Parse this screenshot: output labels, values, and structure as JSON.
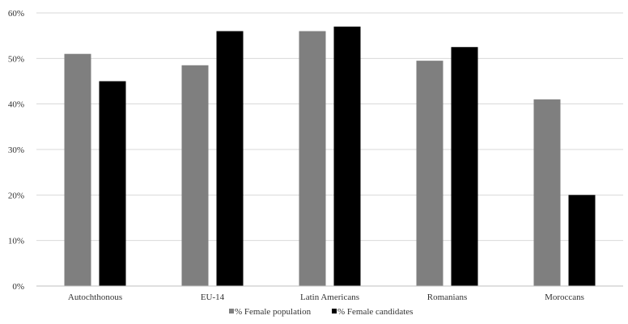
{
  "chart_data": {
    "type": "bar",
    "title": "",
    "xlabel": "",
    "ylabel": "",
    "categories": [
      "Autochthonous",
      "EU-14",
      "Latin Americans",
      "Romanians",
      "Moroccans"
    ],
    "series": [
      {
        "name": "% Female population",
        "values": [
          51,
          48.5,
          56,
          49.5,
          41
        ],
        "color": "#7f7f7f"
      },
      {
        "name": "% Female candidates",
        "values": [
          45,
          56,
          57,
          52.5,
          20
        ],
        "color": "#000000"
      }
    ],
    "ylim": [
      0,
      60
    ],
    "yticks": [
      0,
      10,
      20,
      30,
      40,
      50,
      60
    ],
    "y_tick_labels": [
      "0%",
      "10%",
      "20%",
      "30%",
      "40%",
      "50%",
      "60%"
    ],
    "grid": true,
    "grid_color": "#d9d9d9",
    "legend_position": "bottom"
  }
}
